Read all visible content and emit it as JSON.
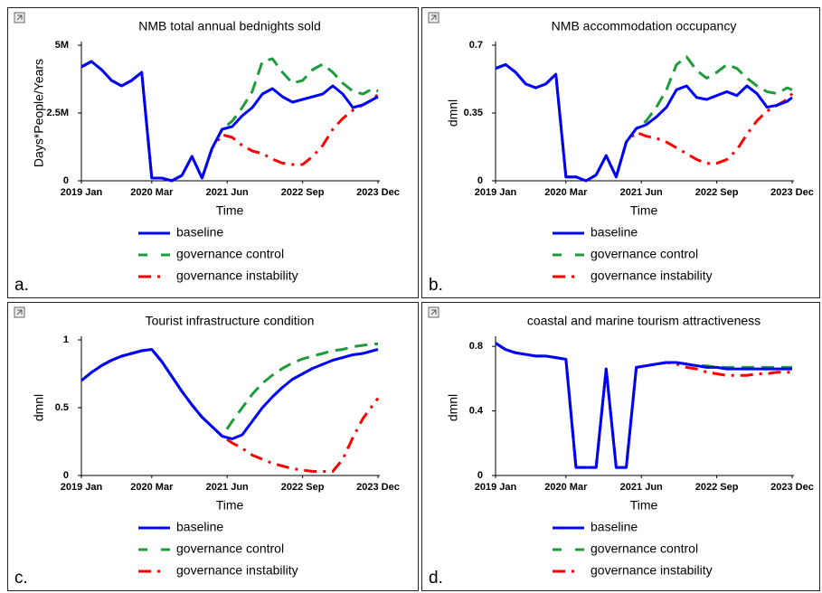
{
  "chart_data": [
    {
      "type": "line",
      "label": "a.",
      "title": "NMB total annual bednights sold",
      "xlabel": "Time",
      "ylabel": "Days*People/Years",
      "x": [
        "2019-01",
        "2019-03",
        "2019-05",
        "2019-07",
        "2019-09",
        "2019-11",
        "2020-01",
        "2020-03",
        "2020-05",
        "2020-07",
        "2020-09",
        "2020-11",
        "2021-01",
        "2021-03",
        "2021-05",
        "2021-07",
        "2021-09",
        "2021-11",
        "2022-01",
        "2022-03",
        "2022-05",
        "2022-07",
        "2022-09",
        "2022-11",
        "2023-01",
        "2023-03",
        "2023-05",
        "2023-07",
        "2023-09",
        "2023-11",
        "2023-12"
      ],
      "xlim": [
        "2019-01",
        "2023-12"
      ],
      "xticks": [
        {
          "value": "2019-01",
          "label": "2019 Jan"
        },
        {
          "value": "2020-03",
          "label": "2020 Mar"
        },
        {
          "value": "2021-06",
          "label": "2021 Jun"
        },
        {
          "value": "2022-09",
          "label": "2022 Sep"
        },
        {
          "value": "2023-12",
          "label": "2023 Dec"
        }
      ],
      "ylim": [
        0,
        5000000
      ],
      "yticks": [
        0,
        {
          "value": 2500000,
          "label": "2.5M"
        },
        {
          "value": 5000000,
          "label": "5M"
        }
      ],
      "series": [
        {
          "name": "baseline",
          "color": "#0000ff",
          "linestyle": "solid",
          "values": [
            4200000,
            4400000,
            4100000,
            3700000,
            3500000,
            3700000,
            4000000,
            100000,
            100000,
            0,
            200000,
            900000,
            100000,
            1200000,
            1900000,
            2000000,
            2400000,
            2700000,
            3200000,
            3400000,
            3100000,
            2900000,
            3000000,
            3100000,
            3200000,
            3500000,
            3200000,
            2700000,
            2800000,
            3000000,
            3100000
          ]
        },
        {
          "name": "governance control",
          "color": "#1e9c3c",
          "linestyle": "dashed",
          "values": [
            4200000,
            4400000,
            4100000,
            3700000,
            3500000,
            3700000,
            4000000,
            100000,
            100000,
            0,
            200000,
            900000,
            100000,
            1200000,
            1900000,
            2200000,
            2700000,
            3300000,
            4400000,
            4500000,
            4000000,
            3600000,
            3700000,
            4100000,
            4300000,
            4000000,
            3600000,
            3300000,
            3200000,
            3400000,
            3300000
          ]
        },
        {
          "name": "governance instability",
          "color": "#ff0000",
          "linestyle": "dashdot",
          "values": [
            4200000,
            4400000,
            4100000,
            3700000,
            3500000,
            3700000,
            4000000,
            100000,
            100000,
            0,
            200000,
            900000,
            100000,
            1200000,
            1700000,
            1600000,
            1300000,
            1100000,
            1000000,
            800000,
            650000,
            600000,
            600000,
            900000,
            1300000,
            1900000,
            2300000,
            2600000,
            2800000,
            3000000,
            3200000
          ]
        }
      ]
    },
    {
      "type": "line",
      "label": "b.",
      "title": "NMB accommodation occupancy",
      "xlabel": "Time",
      "ylabel": "dmnl",
      "x": [
        "2019-01",
        "2019-03",
        "2019-05",
        "2019-07",
        "2019-09",
        "2019-11",
        "2020-01",
        "2020-03",
        "2020-05",
        "2020-07",
        "2020-09",
        "2020-11",
        "2021-01",
        "2021-03",
        "2021-05",
        "2021-07",
        "2021-09",
        "2021-11",
        "2022-01",
        "2022-03",
        "2022-05",
        "2022-07",
        "2022-09",
        "2022-11",
        "2023-01",
        "2023-03",
        "2023-05",
        "2023-07",
        "2023-09",
        "2023-11",
        "2023-12"
      ],
      "xlim": [
        "2019-01",
        "2023-12"
      ],
      "xticks": [
        {
          "value": "2019-01",
          "label": "2019 Jan"
        },
        {
          "value": "2020-03",
          "label": "2020 Mar"
        },
        {
          "value": "2021-06",
          "label": "2021 Jun"
        },
        {
          "value": "2022-09",
          "label": "2022 Sep"
        },
        {
          "value": "2023-12",
          "label": "2023 Dec"
        }
      ],
      "ylim": [
        0,
        0.7
      ],
      "yticks": [
        0,
        0.35,
        0.7
      ],
      "series": [
        {
          "name": "baseline",
          "color": "#0000ff",
          "linestyle": "solid",
          "values": [
            0.58,
            0.6,
            0.56,
            0.5,
            0.48,
            0.5,
            0.55,
            0.02,
            0.02,
            0.0,
            0.03,
            0.13,
            0.02,
            0.2,
            0.27,
            0.29,
            0.33,
            0.38,
            0.47,
            0.49,
            0.43,
            0.42,
            0.44,
            0.46,
            0.44,
            0.49,
            0.45,
            0.38,
            0.39,
            0.41,
            0.43
          ]
        },
        {
          "name": "governance control",
          "color": "#1e9c3c",
          "linestyle": "dashed",
          "values": [
            0.58,
            0.6,
            0.56,
            0.5,
            0.48,
            0.5,
            0.55,
            0.02,
            0.02,
            0.0,
            0.03,
            0.13,
            0.02,
            0.2,
            0.27,
            0.31,
            0.38,
            0.47,
            0.6,
            0.64,
            0.57,
            0.53,
            0.56,
            0.6,
            0.58,
            0.53,
            0.49,
            0.46,
            0.45,
            0.48,
            0.47
          ]
        },
        {
          "name": "governance instability",
          "color": "#ff0000",
          "linestyle": "dashdot",
          "values": [
            0.58,
            0.6,
            0.56,
            0.5,
            0.48,
            0.5,
            0.55,
            0.02,
            0.02,
            0.0,
            0.03,
            0.13,
            0.02,
            0.2,
            0.25,
            0.23,
            0.22,
            0.2,
            0.17,
            0.14,
            0.11,
            0.09,
            0.09,
            0.11,
            0.16,
            0.24,
            0.31,
            0.36,
            0.39,
            0.42,
            0.45
          ]
        }
      ]
    },
    {
      "type": "line",
      "label": "c.",
      "title": "Tourist infrastructure condition",
      "xlabel": "Time",
      "ylabel": "dmnl",
      "x": [
        "2019-01",
        "2019-03",
        "2019-05",
        "2019-07",
        "2019-09",
        "2019-11",
        "2020-01",
        "2020-03",
        "2020-05",
        "2020-07",
        "2020-09",
        "2020-11",
        "2021-01",
        "2021-03",
        "2021-05",
        "2021-07",
        "2021-09",
        "2021-11",
        "2022-01",
        "2022-03",
        "2022-05",
        "2022-07",
        "2022-09",
        "2022-11",
        "2023-01",
        "2023-03",
        "2023-05",
        "2023-07",
        "2023-09",
        "2023-11",
        "2023-12"
      ],
      "xlim": [
        "2019-01",
        "2023-12"
      ],
      "xticks": [
        {
          "value": "2019-01",
          "label": "2019 Jan"
        },
        {
          "value": "2020-03",
          "label": "2020 Mar"
        },
        {
          "value": "2021-06",
          "label": "2021 Jun"
        },
        {
          "value": "2022-09",
          "label": "2022 Sep"
        },
        {
          "value": "2023-12",
          "label": "2023 Dec"
        }
      ],
      "ylim": [
        0,
        1
      ],
      "yticks": [
        0,
        0.5,
        1
      ],
      "series": [
        {
          "name": "baseline",
          "color": "#0000ff",
          "linestyle": "solid",
          "values": [
            0.7,
            0.76,
            0.81,
            0.85,
            0.88,
            0.9,
            0.92,
            0.93,
            0.84,
            0.73,
            0.62,
            0.52,
            0.43,
            0.36,
            0.29,
            0.27,
            0.3,
            0.4,
            0.5,
            0.58,
            0.65,
            0.71,
            0.75,
            0.79,
            0.82,
            0.85,
            0.87,
            0.89,
            0.9,
            0.92,
            0.93
          ]
        },
        {
          "name": "governance control",
          "color": "#1e9c3c",
          "linestyle": "dashed",
          "values": [
            0.7,
            0.76,
            0.81,
            0.85,
            0.88,
            0.9,
            0.92,
            0.93,
            0.84,
            0.73,
            0.62,
            0.52,
            0.43,
            0.36,
            0.29,
            0.4,
            0.5,
            0.6,
            0.68,
            0.74,
            0.79,
            0.83,
            0.86,
            0.88,
            0.9,
            0.92,
            0.93,
            0.95,
            0.96,
            0.97,
            0.97
          ]
        },
        {
          "name": "governance instability",
          "color": "#ff0000",
          "linestyle": "dashdot",
          "values": [
            0.7,
            0.76,
            0.81,
            0.85,
            0.88,
            0.9,
            0.92,
            0.93,
            0.84,
            0.73,
            0.62,
            0.52,
            0.43,
            0.36,
            0.29,
            0.24,
            0.2,
            0.15,
            0.12,
            0.09,
            0.07,
            0.05,
            0.04,
            0.03,
            0.03,
            0.03,
            0.12,
            0.28,
            0.42,
            0.52,
            0.57
          ]
        }
      ]
    },
    {
      "type": "line",
      "label": "d.",
      "title": "coastal and marine tourism attractiveness",
      "xlabel": "Time",
      "ylabel": "dmnl",
      "x": [
        "2019-01",
        "2019-03",
        "2019-05",
        "2019-07",
        "2019-09",
        "2019-11",
        "2020-01",
        "2020-03",
        "2020-05",
        "2020-07",
        "2020-09",
        "2020-11",
        "2021-01",
        "2021-03",
        "2021-05",
        "2021-07",
        "2021-09",
        "2021-11",
        "2022-01",
        "2022-03",
        "2022-05",
        "2022-07",
        "2022-09",
        "2022-11",
        "2023-01",
        "2023-03",
        "2023-05",
        "2023-07",
        "2023-09",
        "2023-11",
        "2023-12"
      ],
      "xlim": [
        "2019-01",
        "2023-12"
      ],
      "xticks": [
        {
          "value": "2019-01",
          "label": "2019 Jan"
        },
        {
          "value": "2020-03",
          "label": "2020 Mar"
        },
        {
          "value": "2021-06",
          "label": "2021 Jun"
        },
        {
          "value": "2022-09",
          "label": "2022 Sep"
        },
        {
          "value": "2023-12",
          "label": "2023 Dec"
        }
      ],
      "ylim": [
        0,
        0.84
      ],
      "yticks": [
        0,
        0.4,
        0.8
      ],
      "series": [
        {
          "name": "baseline",
          "color": "#0000ff",
          "linestyle": "solid",
          "values": [
            0.82,
            0.78,
            0.76,
            0.75,
            0.74,
            0.74,
            0.73,
            0.72,
            0.05,
            0.05,
            0.05,
            0.66,
            0.05,
            0.05,
            0.67,
            0.68,
            0.69,
            0.7,
            0.7,
            0.69,
            0.68,
            0.67,
            0.67,
            0.66,
            0.66,
            0.66,
            0.66,
            0.66,
            0.66,
            0.66,
            0.66
          ]
        },
        {
          "name": "governance control",
          "color": "#1e9c3c",
          "linestyle": "dashed",
          "values": [
            0.82,
            0.78,
            0.76,
            0.75,
            0.74,
            0.74,
            0.73,
            0.72,
            0.05,
            0.05,
            0.05,
            0.66,
            0.05,
            0.05,
            0.67,
            0.68,
            0.69,
            0.7,
            0.7,
            0.69,
            0.68,
            0.68,
            0.67,
            0.67,
            0.67,
            0.67,
            0.67,
            0.67,
            0.67,
            0.67,
            0.67
          ]
        },
        {
          "name": "governance instability",
          "color": "#ff0000",
          "linestyle": "dashdot",
          "values": [
            0.82,
            0.78,
            0.76,
            0.75,
            0.74,
            0.74,
            0.73,
            0.72,
            0.05,
            0.05,
            0.05,
            0.66,
            0.05,
            0.05,
            0.67,
            0.68,
            0.69,
            0.7,
            0.69,
            0.67,
            0.66,
            0.64,
            0.63,
            0.62,
            0.62,
            0.62,
            0.63,
            0.63,
            0.64,
            0.64,
            0.64
          ]
        }
      ]
    }
  ]
}
